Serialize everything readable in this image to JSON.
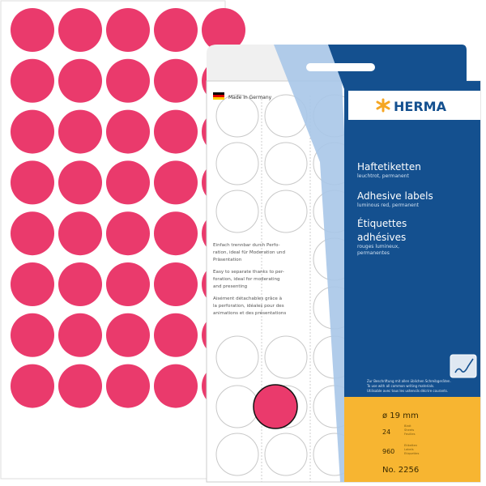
{
  "product": {
    "brand": "HERMA",
    "made_in": "Made in Germany",
    "title_de": "Haftetiketten",
    "subtitle_de": "leuchtrot, permanent",
    "title_en": "Adhesive labels",
    "subtitle_en": "luminous red, permanent",
    "title_fr_1": "Étiquettes",
    "title_fr_2": "adhésives",
    "subtitle_fr_1": "rouges lumineux,",
    "subtitle_fr_2": "permanentes",
    "desc_de": [
      "Einfach trennbar durch Perfo-",
      "ration, ideal für Moderation und",
      "Präsentation"
    ],
    "desc_en": [
      "Easy to separate thanks to per-",
      "foration, ideal for moderating",
      "and presenting"
    ],
    "desc_fr": [
      "Aisément détachables grâce à",
      "la perforation, idéales pour des",
      "animations et des présentations"
    ],
    "writing_note": [
      "Zur Beschriftung mit allen üblichen Schreibgeräten.",
      "To use with all common writing materials.",
      "Utilisable avec tous les ustensils décrire courants."
    ],
    "diameter": "ø 19 mm",
    "sheets_count": "24",
    "sheets_label": [
      "Blatt",
      "Sheets",
      "Feuilles"
    ],
    "labels_count": "960",
    "labels_label": [
      "Etiketten",
      "Labels",
      "Etiquettes"
    ],
    "article_no": "No. 2256"
  },
  "colors": {
    "label_red": "#ea3a6c",
    "dark_blue": "#0f4c8f",
    "light_blue": "#9bbde3",
    "yellow": "#f7b531",
    "herma_orange": "#f5a623"
  },
  "icons": [
    "pen-writing-icon",
    "germany-flag-icon",
    "herma-asterisk-logo"
  ]
}
